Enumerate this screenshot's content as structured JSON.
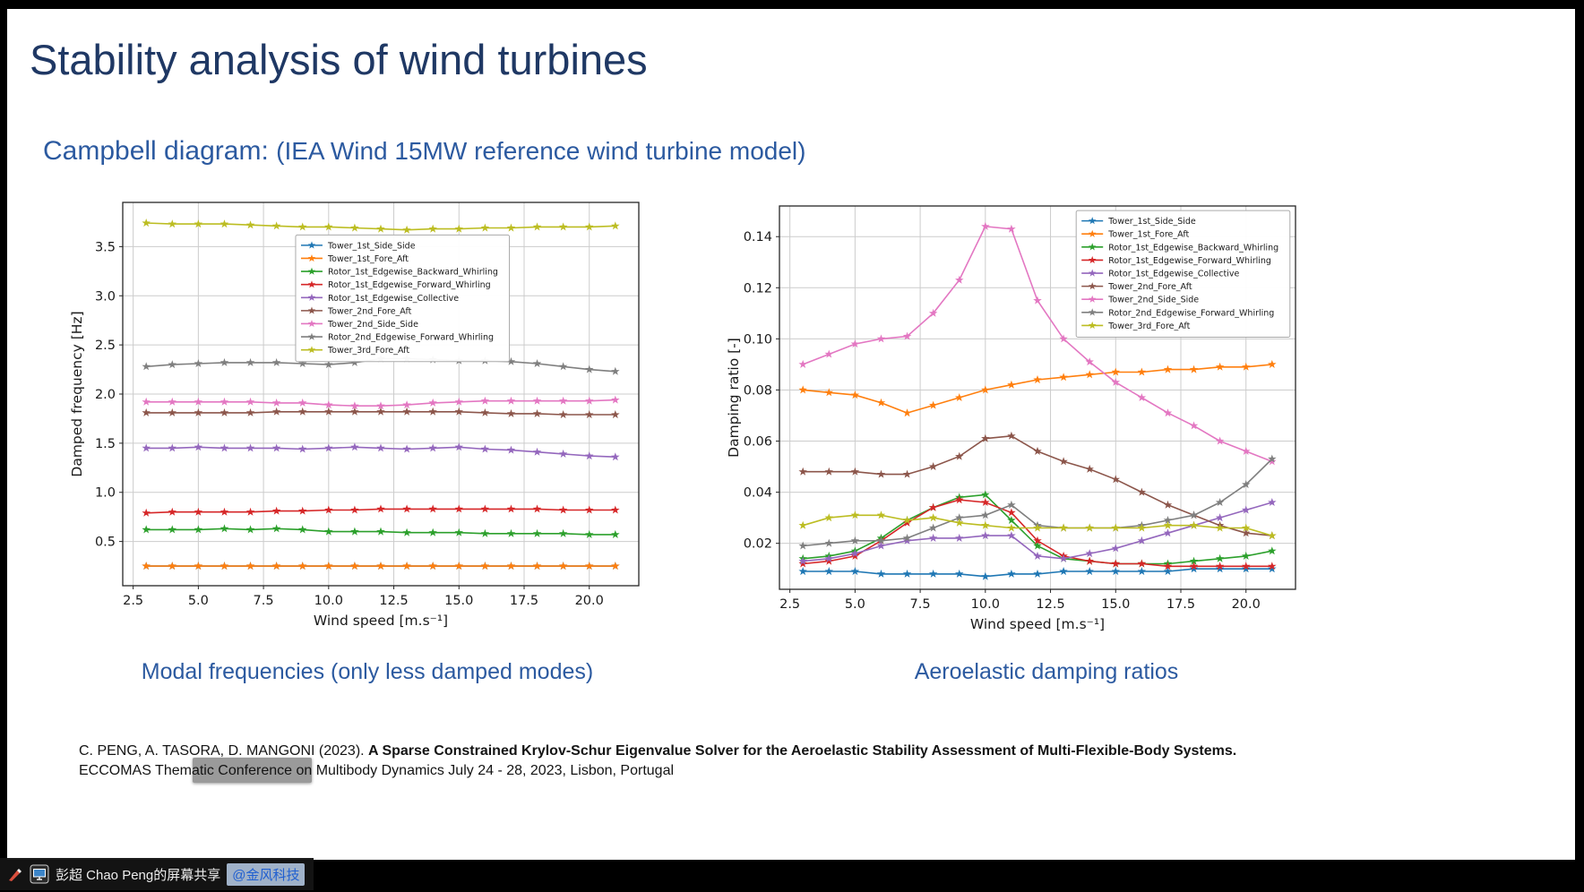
{
  "slide": {
    "title": "Stability analysis of wind turbines",
    "subtitle_main": "Campbell diagram: ",
    "subtitle_detail": "(IEA Wind 15MW reference wind turbine model)",
    "caption_left": "Modal frequencies (only less damped modes)",
    "caption_right": "Aeroelastic damping ratios",
    "citation_prefix": "C. PENG, A. TASORA, D. MANGONI (2023). ",
    "citation_title": "A Sparse Constrained Krylov-Schur Eigenvalue Solver for the Aeroelastic Stability Assessment of Multi-Flexible-Body Systems.",
    "citation_suffix": " ECCOMAS Thematic Conference on Multibody Dynamics July 24 - 28, 2023, Lisbon, Portugal"
  },
  "overlay": {
    "share_text": "彭超 Chao Peng的屏幕共享",
    "share_badge": "@金风科技",
    "icons": [
      "brush-icon",
      "screen-share-icon"
    ]
  },
  "colors": {
    "title": "#1f3864",
    "accent_blue": "#2c5aa0",
    "share_badge_text": "#1f5fd0",
    "grid": "#cccccc"
  },
  "chart_data": [
    {
      "type": "line",
      "title": "",
      "xlabel": "Wind speed [m.s⁻¹]",
      "ylabel": "Damped frequency [Hz]",
      "marker": "star",
      "grid": true,
      "legend_position": "upper-center",
      "legend": {
        "x": 0.335,
        "y": 0.085
      },
      "xlim": [
        2.1,
        21.9
      ],
      "ylim": [
        0.05,
        3.95
      ],
      "xticks": [
        2.5,
        5.0,
        7.5,
        10.0,
        12.5,
        15.0,
        17.5,
        20.0
      ],
      "yticks": [
        0.5,
        1.0,
        1.5,
        2.0,
        2.5,
        3.0,
        3.5
      ],
      "xtick_decimals": 1,
      "ytick_decimals": 1,
      "x": [
        3,
        4,
        5,
        6,
        7,
        8,
        9,
        10,
        11,
        12,
        13,
        14,
        15,
        16,
        17,
        18,
        19,
        20,
        21
      ],
      "series": [
        {
          "name": "Tower_1st_Side_Side",
          "color": "#1f77b4",
          "values": [
            0.25,
            0.25,
            0.25,
            0.25,
            0.25,
            0.25,
            0.25,
            0.25,
            0.25,
            0.25,
            0.25,
            0.25,
            0.25,
            0.25,
            0.25,
            0.25,
            0.25,
            0.25,
            0.25
          ]
        },
        {
          "name": "Tower_1st_Fore_Aft",
          "color": "#ff7f0e",
          "values": [
            0.25,
            0.25,
            0.25,
            0.25,
            0.25,
            0.25,
            0.25,
            0.25,
            0.25,
            0.25,
            0.25,
            0.25,
            0.25,
            0.25,
            0.25,
            0.25,
            0.25,
            0.25,
            0.25
          ]
        },
        {
          "name": "Rotor_1st_Edgewise_Backward_Whirling",
          "color": "#2ca02c",
          "values": [
            0.62,
            0.62,
            0.62,
            0.63,
            0.62,
            0.63,
            0.62,
            0.6,
            0.6,
            0.6,
            0.59,
            0.59,
            0.59,
            0.58,
            0.58,
            0.58,
            0.58,
            0.57,
            0.57
          ]
        },
        {
          "name": "Rotor_1st_Edgewise_Forward_Whirling",
          "color": "#d62728",
          "values": [
            0.79,
            0.8,
            0.8,
            0.8,
            0.8,
            0.81,
            0.81,
            0.82,
            0.82,
            0.83,
            0.83,
            0.83,
            0.83,
            0.83,
            0.83,
            0.83,
            0.82,
            0.82,
            0.82
          ]
        },
        {
          "name": "Rotor_1st_Edgewise_Collective",
          "color": "#9467bd",
          "values": [
            1.45,
            1.45,
            1.46,
            1.45,
            1.45,
            1.45,
            1.44,
            1.45,
            1.46,
            1.45,
            1.44,
            1.45,
            1.46,
            1.44,
            1.43,
            1.41,
            1.39,
            1.37,
            1.36
          ]
        },
        {
          "name": "Tower_2nd_Fore_Aft",
          "color": "#8c564b",
          "values": [
            1.81,
            1.81,
            1.81,
            1.81,
            1.81,
            1.82,
            1.82,
            1.82,
            1.82,
            1.82,
            1.82,
            1.82,
            1.82,
            1.81,
            1.8,
            1.8,
            1.79,
            1.79,
            1.79
          ]
        },
        {
          "name": "Tower_2nd_Side_Side",
          "color": "#e377c2",
          "values": [
            1.92,
            1.92,
            1.92,
            1.92,
            1.92,
            1.91,
            1.91,
            1.89,
            1.88,
            1.88,
            1.89,
            1.91,
            1.92,
            1.93,
            1.93,
            1.93,
            1.93,
            1.93,
            1.94
          ]
        },
        {
          "name": "Rotor_2nd_Edgewise_Forward_Whirling",
          "color": "#7f7f7f",
          "values": [
            2.28,
            2.3,
            2.31,
            2.32,
            2.32,
            2.32,
            2.31,
            2.3,
            2.32,
            2.36,
            2.36,
            2.35,
            2.34,
            2.34,
            2.33,
            2.31,
            2.28,
            2.25,
            2.23
          ]
        },
        {
          "name": "Tower_3rd_Fore_Aft",
          "color": "#bcbd22",
          "values": [
            3.74,
            3.73,
            3.73,
            3.73,
            3.72,
            3.71,
            3.7,
            3.7,
            3.69,
            3.68,
            3.67,
            3.68,
            3.68,
            3.69,
            3.69,
            3.7,
            3.7,
            3.7,
            3.71
          ]
        }
      ]
    },
    {
      "type": "line",
      "title": "",
      "xlabel": "Wind speed [m.s⁻¹]",
      "ylabel": "Damping ratio [-]",
      "marker": "star",
      "grid": true,
      "legend_position": "upper-right",
      "legend": {
        "x": 0.575,
        "y": 0.012
      },
      "xlim": [
        2.1,
        21.9
      ],
      "ylim": [
        0.002,
        0.152
      ],
      "xticks": [
        2.5,
        5.0,
        7.5,
        10.0,
        12.5,
        15.0,
        17.5,
        20.0
      ],
      "yticks": [
        0.02,
        0.04,
        0.06,
        0.08,
        0.1,
        0.12,
        0.14
      ],
      "xtick_decimals": 1,
      "ytick_decimals": 2,
      "x": [
        3,
        4,
        5,
        6,
        7,
        8,
        9,
        10,
        11,
        12,
        13,
        14,
        15,
        16,
        17,
        18,
        19,
        20,
        21
      ],
      "series": [
        {
          "name": "Tower_1st_Side_Side",
          "color": "#1f77b4",
          "values": [
            0.009,
            0.009,
            0.009,
            0.008,
            0.008,
            0.008,
            0.008,
            0.007,
            0.008,
            0.008,
            0.009,
            0.009,
            0.009,
            0.009,
            0.009,
            0.01,
            0.01,
            0.01,
            0.01
          ]
        },
        {
          "name": "Tower_1st_Fore_Aft",
          "color": "#ff7f0e",
          "values": [
            0.08,
            0.079,
            0.078,
            0.075,
            0.071,
            0.074,
            0.077,
            0.08,
            0.082,
            0.084,
            0.085,
            0.086,
            0.087,
            0.087,
            0.088,
            0.088,
            0.089,
            0.089,
            0.09
          ]
        },
        {
          "name": "Rotor_1st_Edgewise_Backward_Whirling",
          "color": "#2ca02c",
          "values": [
            0.014,
            0.015,
            0.017,
            0.022,
            0.029,
            0.034,
            0.038,
            0.039,
            0.029,
            0.019,
            0.014,
            0.013,
            0.012,
            0.012,
            0.012,
            0.013,
            0.014,
            0.015,
            0.017
          ]
        },
        {
          "name": "Rotor_1st_Edgewise_Forward_Whirling",
          "color": "#d62728",
          "values": [
            0.012,
            0.013,
            0.015,
            0.021,
            0.028,
            0.034,
            0.037,
            0.036,
            0.032,
            0.021,
            0.015,
            0.013,
            0.012,
            0.012,
            0.011,
            0.011,
            0.011,
            0.011,
            0.011
          ]
        },
        {
          "name": "Rotor_1st_Edgewise_Collective",
          "color": "#9467bd",
          "values": [
            0.013,
            0.014,
            0.016,
            0.019,
            0.021,
            0.022,
            0.022,
            0.023,
            0.023,
            0.015,
            0.014,
            0.016,
            0.018,
            0.021,
            0.024,
            0.027,
            0.03,
            0.033,
            0.036
          ]
        },
        {
          "name": "Tower_2nd_Fore_Aft",
          "color": "#8c564b",
          "values": [
            0.048,
            0.048,
            0.048,
            0.047,
            0.047,
            0.05,
            0.054,
            0.061,
            0.062,
            0.056,
            0.052,
            0.049,
            0.045,
            0.04,
            0.035,
            0.031,
            0.027,
            0.024,
            0.023
          ]
        },
        {
          "name": "Tower_2nd_Side_Side",
          "color": "#e377c2",
          "values": [
            0.09,
            0.094,
            0.098,
            0.1,
            0.101,
            0.11,
            0.123,
            0.144,
            0.143,
            0.115,
            0.1,
            0.091,
            0.083,
            0.077,
            0.071,
            0.066,
            0.06,
            0.056,
            0.052
          ]
        },
        {
          "name": "Rotor_2nd_Edgewise_Forward_Whirling",
          "color": "#7f7f7f",
          "values": [
            0.019,
            0.02,
            0.021,
            0.021,
            0.022,
            0.026,
            0.03,
            0.031,
            0.035,
            0.027,
            0.026,
            0.026,
            0.026,
            0.027,
            0.029,
            0.031,
            0.036,
            0.043,
            0.053
          ]
        },
        {
          "name": "Tower_3rd_Fore_Aft",
          "color": "#bcbd22",
          "values": [
            0.027,
            0.03,
            0.031,
            0.031,
            0.029,
            0.03,
            0.028,
            0.027,
            0.026,
            0.026,
            0.026,
            0.026,
            0.026,
            0.026,
            0.027,
            0.027,
            0.026,
            0.026,
            0.023
          ]
        }
      ]
    }
  ]
}
